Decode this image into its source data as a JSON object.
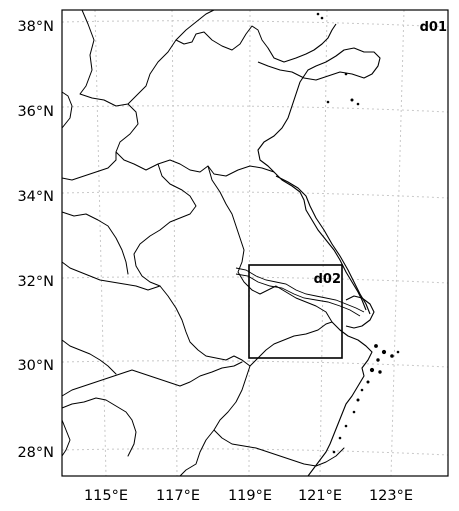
{
  "map": {
    "type": "domain-map",
    "lat_ticks": [
      "38°N",
      "36°N",
      "34°N",
      "32°N",
      "30°N",
      "28°N"
    ],
    "lon_ticks": [
      "115°E",
      "117°E",
      "119°E",
      "121°E",
      "123°E"
    ],
    "lat_range": [
      27.4,
      38.35
    ],
    "lon_range": [
      113.95,
      124.0
    ],
    "gridlines": true,
    "domains": [
      {
        "label": "d01",
        "position": "top-right",
        "extent": {
          "lon": [
            113.95,
            124.0
          ],
          "lat": [
            27.4,
            38.35
          ]
        }
      },
      {
        "label": "d02",
        "position": "top-right",
        "extent": {
          "lon": [
            118.85,
            121.25
          ],
          "lat": [
            30.1,
            32.35
          ]
        }
      }
    ]
  }
}
